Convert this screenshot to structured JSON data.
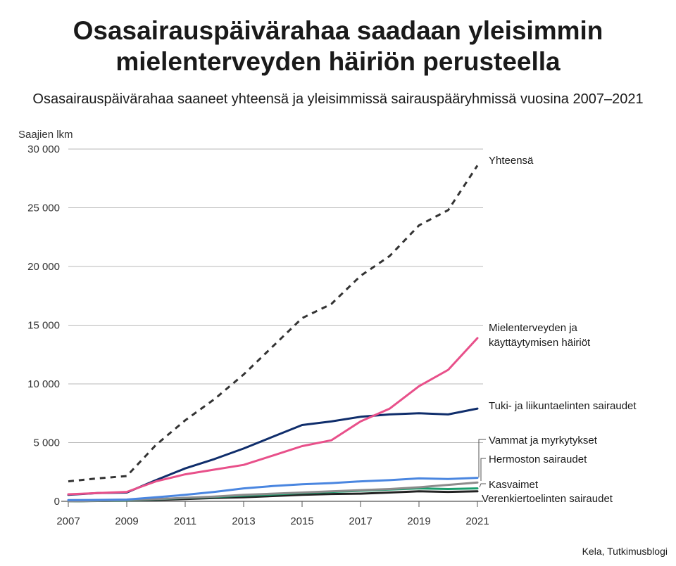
{
  "title_line1": "Osasairauspäivärahaa saadaan yleisimmin",
  "title_line2": "mielenterveyden häiriön perusteella",
  "subtitle": "Osasairauspäivärahaa saaneet yhteensä ja yleisimmissä sairauspääryhmissä vuosina 2007–2021",
  "source": "Kela, Tutkimusblogi",
  "chart_data": {
    "type": "line",
    "ylabel": "Saajien lkm",
    "ylim": [
      0,
      30000
    ],
    "xlim": [
      2007,
      2021
    ],
    "yticks": [
      0,
      5000,
      10000,
      15000,
      20000,
      25000,
      30000
    ],
    "ytick_labels": [
      "0",
      "5 000",
      "10 000",
      "15 000",
      "20 000",
      "25 000",
      "30 000"
    ],
    "xticks": [
      2007,
      2009,
      2011,
      2013,
      2015,
      2017,
      2019,
      2021
    ],
    "xtick_labels": [
      "2007",
      "2009",
      "2011",
      "2013",
      "2015",
      "2017",
      "2019",
      "2021"
    ],
    "grid": "horizontal",
    "legend": "line-end labels, right",
    "x": [
      2007,
      2008,
      2009,
      2010,
      2011,
      2012,
      2013,
      2014,
      2015,
      2016,
      2017,
      2018,
      2019,
      2020,
      2021
    ],
    "series": [
      {
        "name": "Yhteensä",
        "color": "#333333",
        "dashed": true,
        "values": [
          1700,
          1950,
          2150,
          4800,
          6900,
          8700,
          10800,
          13200,
          15600,
          16800,
          19200,
          20900,
          23500,
          24800,
          28600
        ]
      },
      {
        "name": "Mielenterveyden ja käyttäytymisen häiriöt",
        "color": "#e8508a",
        "dashed": false,
        "values": [
          600,
          700,
          800,
          1700,
          2300,
          2700,
          3100,
          3900,
          4700,
          5200,
          6800,
          7900,
          9800,
          11200,
          13900
        ]
      },
      {
        "name": "Tuki- ja liikuntaelinten sairaudet",
        "color": "#0f2d6b",
        "dashed": false,
        "values": [
          550,
          700,
          750,
          1800,
          2800,
          3600,
          4500,
          5500,
          6500,
          6800,
          7200,
          7400,
          7500,
          7400,
          7900
        ]
      },
      {
        "name": "Vammat ja myrkytykset",
        "color": "#4a86e0",
        "dashed": false,
        "values": [
          100,
          120,
          150,
          350,
          550,
          800,
          1100,
          1300,
          1450,
          1550,
          1700,
          1800,
          1950,
          1900,
          2000
        ]
      },
      {
        "name": "Hermoston sairaudet",
        "color": "#8c8c8c",
        "dashed": false,
        "values": [
          0,
          50,
          100,
          200,
          300,
          400,
          550,
          650,
          750,
          850,
          950,
          1050,
          1200,
          1400,
          1600
        ]
      },
      {
        "name": "Kasvaimet",
        "color": "#1a9e6e",
        "dashed": false,
        "values": [
          0,
          40,
          80,
          180,
          280,
          380,
          480,
          580,
          700,
          800,
          900,
          1000,
          1100,
          1050,
          1100
        ]
      },
      {
        "name": "Verenkiertoelinten sairaudet",
        "color": "#222222",
        "dashed": false,
        "values": [
          0,
          30,
          60,
          120,
          200,
          280,
          350,
          450,
          550,
          620,
          650,
          750,
          850,
          800,
          850
        ]
      }
    ]
  },
  "labels": {
    "total": "Yhteensä",
    "mental_line1": "Mielenterveyden ja",
    "mental_line2": "käyttäytymisen häiriöt",
    "musculo": "Tuki- ja liikuntaelinten sairaudet",
    "injuries": "Vammat ja myrkytykset",
    "nervous": "Hermoston sairaudet",
    "neoplasms": "Kasvaimet",
    "circulatory": "Verenkiertoelinten sairaudet"
  }
}
